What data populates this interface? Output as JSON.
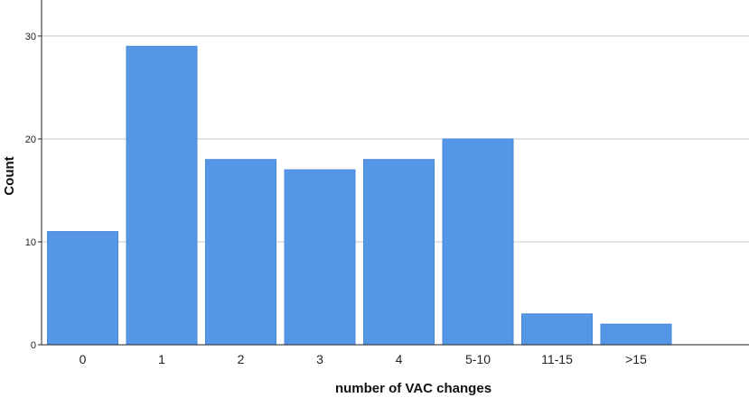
{
  "chart_data": {
    "type": "bar",
    "categories": [
      "0",
      "1",
      "2",
      "3",
      "4",
      "5-10",
      "11-15",
      ">15"
    ],
    "values": [
      11,
      29,
      18,
      17,
      18,
      20,
      3,
      2
    ],
    "title": "",
    "xlabel": "number of VAC changes",
    "ylabel": "Count",
    "ylim": [
      0,
      33.5
    ],
    "yticks": [
      0,
      10,
      20,
      30
    ],
    "grid": true,
    "bar_color": "#5596e6",
    "bar_edge_color": "#4a88d8",
    "grid_color": "#c8c8c8"
  }
}
